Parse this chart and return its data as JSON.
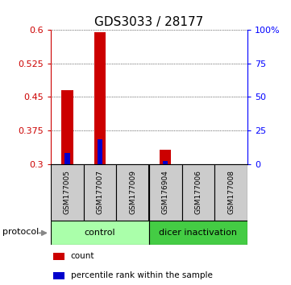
{
  "title": "GDS3033 / 28177",
  "samples": [
    "GSM177005",
    "GSM177007",
    "GSM177009",
    "GSM176904",
    "GSM177006",
    "GSM177008"
  ],
  "red_values": [
    0.465,
    0.595,
    0.3,
    0.332,
    0.3,
    0.3
  ],
  "blue_values": [
    0.325,
    0.355,
    0.3,
    0.307,
    0.3,
    0.3
  ],
  "ylim_left": [
    0.3,
    0.6
  ],
  "ylim_right": [
    0,
    100
  ],
  "yticks_left": [
    0.3,
    0.375,
    0.45,
    0.525,
    0.6
  ],
  "yticks_right": [
    0,
    25,
    50,
    75,
    100
  ],
  "ytick_labels_left": [
    "0.3",
    "0.375",
    "0.45",
    "0.525",
    "0.6"
  ],
  "ytick_labels_right": [
    "0",
    "25",
    "50",
    "75",
    "100%"
  ],
  "protocol_groups": [
    {
      "label": "control",
      "n_samples": 3,
      "color": "#aaffaa"
    },
    {
      "label": "dicer inactivation",
      "n_samples": 3,
      "color": "#44cc44"
    }
  ],
  "protocol_label": "protocol",
  "red_color": "#cc0000",
  "blue_color": "#0000cc",
  "sample_bg_color": "#cccccc",
  "legend_items": [
    "count",
    "percentile rank within the sample"
  ],
  "title_fontsize": 11,
  "tick_fontsize": 8
}
